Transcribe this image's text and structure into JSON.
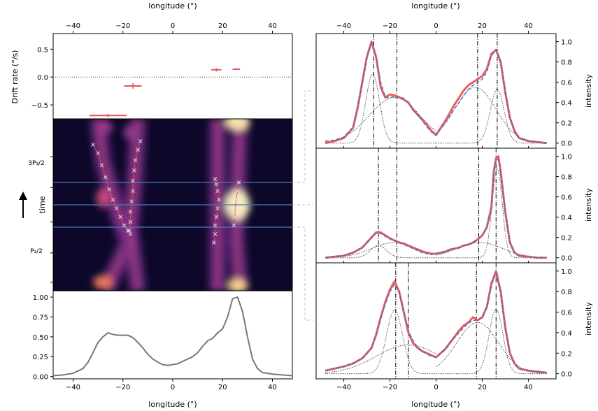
{
  "figure": {
    "top_xlabel": "longitude (°)",
    "bottom_xlabel": "longitude (°)",
    "time_label": "time",
    "p3_label_top": "3P₃/2",
    "p3_label_bottom": "P₃/2"
  },
  "chart_data": [
    {
      "id": "drift_rate",
      "type": "scatter",
      "ylabel": "Drift rate (°/s)",
      "xlim": [
        -48,
        48
      ],
      "ylim": [
        -0.75,
        0.78
      ],
      "xticks": [
        -40,
        -20,
        0,
        20,
        40
      ],
      "yticks": [
        0.5,
        0.0,
        -0.5
      ],
      "ytick_labels": [
        "0.5",
        "0.0",
        "−0.5"
      ],
      "reference_line_y": 0.0,
      "points": [
        {
          "x": -26,
          "y": -0.69,
          "xerr": 7.5,
          "yerr": 0.03
        },
        {
          "x": -16,
          "y": -0.16,
          "xerr": 3.5,
          "yerr": 0.05
        },
        {
          "x": 17.5,
          "y": 0.13,
          "xerr": 2.0,
          "yerr": 0.03
        },
        {
          "x": 25.5,
          "y": 0.14,
          "xerr": 1.5,
          "yerr": 0.0
        }
      ]
    },
    {
      "id": "time_longitude_map",
      "type": "heatmap",
      "xlim": [
        -48,
        48
      ],
      "ytick_labels": [
        "3P₃/2",
        "P₃/2"
      ],
      "marked_rows_fraction": [
        0.37,
        0.5,
        0.63
      ],
      "tracks": [
        {
          "marks": [
            [
              -32,
              0.15
            ],
            [
              -30,
              0.2
            ],
            [
              -28.5,
              0.27
            ],
            [
              -27,
              0.34
            ],
            [
              -25.5,
              0.41
            ],
            [
              -24,
              0.47
            ],
            [
              -22.5,
              0.52
            ],
            [
              -21,
              0.57
            ],
            [
              -19.5,
              0.62
            ],
            [
              -18,
              0.65
            ],
            [
              -17,
              0.67
            ]
          ]
        },
        {
          "marks": [
            [
              -13,
              0.13
            ],
            [
              -14,
              0.18
            ],
            [
              -15,
              0.24
            ],
            [
              -15.5,
              0.3
            ],
            [
              -16,
              0.36
            ],
            [
              -16,
              0.42
            ],
            [
              -16.5,
              0.48
            ],
            [
              -17,
              0.54
            ],
            [
              -17,
              0.6
            ],
            [
              -17.5,
              0.65
            ]
          ]
        },
        {
          "marks": [
            [
              17,
              0.35
            ],
            [
              17.5,
              0.38
            ],
            [
              18,
              0.42
            ],
            [
              18.5,
              0.47
            ],
            [
              18,
              0.52
            ],
            [
              17.5,
              0.57
            ],
            [
              17,
              0.62
            ],
            [
              17,
              0.67
            ],
            [
              16.5,
              0.72
            ]
          ]
        },
        {
          "marks": [
            [
              26.5,
              0.37
            ],
            [
              26,
              0.42
            ],
            [
              25.5,
              0.47
            ],
            [
              25,
              0.52
            ],
            [
              25,
              0.57
            ],
            [
              24.5,
              0.62
            ]
          ]
        }
      ]
    },
    {
      "id": "average_profile",
      "type": "line",
      "xlim": [
        -48,
        48
      ],
      "ylim": [
        -0.03,
        1.08
      ],
      "xticks": [
        -40,
        -20,
        0,
        20,
        40
      ],
      "yticks": [
        0.0,
        0.25,
        0.5,
        0.75,
        1.0
      ],
      "ytick_labels": [
        "0.00",
        "0.25",
        "0.50",
        "0.75",
        "1.00"
      ],
      "xlabel": "longitude (°)",
      "x": [
        -48,
        -44,
        -40,
        -36,
        -34,
        -32,
        -30,
        -28,
        -26,
        -24,
        -22,
        -20,
        -18,
        -16,
        -14,
        -12,
        -10,
        -8,
        -6,
        -4,
        -2,
        0,
        2,
        4,
        6,
        8,
        10,
        12,
        14,
        16,
        18,
        20,
        22,
        24,
        26,
        28,
        30,
        32,
        34,
        36,
        40,
        44,
        48
      ],
      "y": [
        0.01,
        0.02,
        0.04,
        0.1,
        0.18,
        0.3,
        0.43,
        0.5,
        0.55,
        0.53,
        0.52,
        0.52,
        0.52,
        0.49,
        0.43,
        0.36,
        0.28,
        0.22,
        0.18,
        0.15,
        0.14,
        0.15,
        0.16,
        0.19,
        0.22,
        0.25,
        0.3,
        0.38,
        0.45,
        0.48,
        0.55,
        0.6,
        0.75,
        0.98,
        1.0,
        0.82,
        0.5,
        0.22,
        0.1,
        0.05,
        0.03,
        0.02,
        0.01
      ]
    },
    {
      "id": "profile_1",
      "type": "line",
      "ylabel": "intensity",
      "xlim": [
        -52,
        52
      ],
      "ylim": [
        -0.05,
        1.08
      ],
      "yticks": [
        0.0,
        0.2,
        0.4,
        0.6,
        0.8,
        1.0
      ],
      "ytick_labels": [
        "0.0",
        "0.2",
        "0.4",
        "0.6",
        "0.8",
        "1.0"
      ],
      "xticks": [
        -40,
        -20,
        0,
        20,
        40
      ],
      "vlines": [
        -27,
        -17,
        18,
        26.5
      ],
      "data": {
        "x": [
          -48,
          -44,
          -40,
          -36,
          -34,
          -32,
          -30,
          -28,
          -26,
          -24,
          -22,
          -20,
          -18,
          -16,
          -14,
          -12,
          -10,
          -8,
          -6,
          -4,
          -2,
          0,
          2,
          4,
          6,
          8,
          10,
          12,
          14,
          16,
          18,
          20,
          22,
          24,
          26,
          28,
          30,
          32,
          34,
          36,
          40,
          44,
          48
        ],
        "y": [
          0.0,
          0.02,
          0.05,
          0.15,
          0.35,
          0.6,
          0.85,
          1.0,
          0.85,
          0.55,
          0.45,
          0.48,
          0.47,
          0.45,
          0.43,
          0.4,
          0.33,
          0.28,
          0.23,
          0.18,
          0.12,
          0.08,
          0.15,
          0.22,
          0.3,
          0.38,
          0.45,
          0.52,
          0.57,
          0.6,
          0.63,
          0.66,
          0.73,
          0.88,
          0.92,
          0.8,
          0.5,
          0.25,
          0.12,
          0.05,
          0.02,
          0.01,
          0.0
        ]
      },
      "fit": {
        "x": [
          -48,
          -44,
          -40,
          -36,
          -34,
          -32,
          -30,
          -28,
          -26,
          -24,
          -22,
          -20,
          -18,
          -16,
          -14,
          -12,
          -10,
          -8,
          -6,
          -4,
          -2,
          0,
          2,
          4,
          6,
          8,
          10,
          12,
          14,
          16,
          18,
          20,
          22,
          24,
          26,
          28,
          30,
          32,
          34,
          36,
          40,
          44,
          48
        ],
        "y": [
          0.02,
          0.03,
          0.06,
          0.16,
          0.33,
          0.6,
          0.85,
          0.98,
          0.85,
          0.6,
          0.45,
          0.45,
          0.46,
          0.46,
          0.44,
          0.4,
          0.34,
          0.28,
          0.22,
          0.16,
          0.11,
          0.08,
          0.14,
          0.2,
          0.27,
          0.34,
          0.4,
          0.47,
          0.53,
          0.57,
          0.6,
          0.63,
          0.7,
          0.86,
          0.92,
          0.8,
          0.5,
          0.25,
          0.12,
          0.05,
          0.02,
          0.01,
          0.0
        ]
      },
      "components": [
        {
          "center": -27.5,
          "amp": 0.68,
          "sigma": 3.0,
          "xrange": [
            -48,
            0
          ]
        },
        {
          "center": -18,
          "amp": 0.45,
          "sigma": 11,
          "xrange": [
            -48,
            0
          ]
        },
        {
          "center": 17,
          "amp": 0.55,
          "sigma": 9,
          "xrange": [
            0,
            48
          ]
        },
        {
          "center": 26.5,
          "amp": 0.53,
          "sigma": 3.0,
          "xrange": [
            0,
            48
          ]
        }
      ]
    },
    {
      "id": "profile_2",
      "type": "line",
      "ylabel": "intensity",
      "xlim": [
        -52,
        52
      ],
      "ylim": [
        -0.05,
        1.08
      ],
      "yticks": [
        0.0,
        0.2,
        0.4,
        0.6,
        0.8,
        1.0
      ],
      "ytick_labels": [
        "0.0",
        "0.2",
        "0.4",
        "0.6",
        "0.8",
        "1.0"
      ],
      "xticks": [
        -40,
        -20,
        0,
        20,
        40
      ],
      "vlines": [
        -25,
        -17,
        18.5,
        26
      ],
      "data": {
        "x": [
          -48,
          -44,
          -40,
          -36,
          -32,
          -30,
          -28,
          -26,
          -24,
          -22,
          -20,
          -18,
          -16,
          -14,
          -12,
          -10,
          -8,
          -6,
          -4,
          -2,
          0,
          2,
          4,
          6,
          8,
          10,
          12,
          14,
          16,
          18,
          20,
          22,
          24,
          25,
          26,
          27,
          28,
          30,
          32,
          34,
          36,
          40,
          44,
          48
        ],
        "y": [
          0.0,
          0.01,
          0.02,
          0.05,
          0.1,
          0.15,
          0.2,
          0.25,
          0.25,
          0.22,
          0.19,
          0.17,
          0.15,
          0.14,
          0.12,
          0.1,
          0.08,
          0.06,
          0.05,
          0.04,
          0.04,
          0.05,
          0.06,
          0.08,
          0.09,
          0.1,
          0.12,
          0.13,
          0.15,
          0.18,
          0.22,
          0.3,
          0.5,
          0.85,
          0.98,
          1.0,
          0.85,
          0.45,
          0.15,
          0.05,
          0.02,
          0.01,
          0.0,
          0.0
        ]
      },
      "fit": {
        "x": [
          -48,
          -44,
          -40,
          -36,
          -32,
          -30,
          -28,
          -26,
          -24,
          -22,
          -20,
          -18,
          -16,
          -14,
          -12,
          -10,
          -8,
          -6,
          -4,
          -2,
          0,
          2,
          4,
          6,
          8,
          10,
          12,
          14,
          16,
          18,
          20,
          22,
          24,
          25,
          26,
          27,
          28,
          30,
          32,
          34,
          36,
          40,
          44,
          48
        ],
        "y": [
          0.0,
          0.01,
          0.02,
          0.05,
          0.1,
          0.15,
          0.2,
          0.24,
          0.24,
          0.21,
          0.19,
          0.17,
          0.15,
          0.13,
          0.11,
          0.09,
          0.07,
          0.05,
          0.04,
          0.03,
          0.04,
          0.05,
          0.06,
          0.08,
          0.09,
          0.1,
          0.12,
          0.13,
          0.15,
          0.18,
          0.22,
          0.3,
          0.5,
          0.83,
          0.96,
          0.97,
          0.84,
          0.45,
          0.15,
          0.05,
          0.02,
          0.01,
          0.0,
          0.0
        ]
      },
      "components": [
        {
          "center": -25,
          "amp": 0.12,
          "sigma": 3.5,
          "xrange": [
            -48,
            0
          ]
        },
        {
          "center": -18,
          "amp": 0.15,
          "sigma": 10,
          "xrange": [
            -48,
            0
          ]
        },
        {
          "center": 19,
          "amp": 0.15,
          "sigma": 10,
          "xrange": [
            0,
            48
          ]
        },
        {
          "center": 26.5,
          "amp": 0.88,
          "sigma": 2.2,
          "xrange": [
            0,
            48
          ]
        }
      ]
    },
    {
      "id": "profile_3",
      "type": "line",
      "ylabel": "intensity",
      "xlim": [
        -52,
        52
      ],
      "ylim": [
        -0.05,
        1.08
      ],
      "yticks": [
        0.0,
        0.2,
        0.4,
        0.6,
        0.8,
        1.0
      ],
      "ytick_labels": [
        "0.0",
        "0.2",
        "0.4",
        "0.6",
        "0.8",
        "1.0"
      ],
      "xticks": [
        -40,
        -20,
        0,
        20,
        40
      ],
      "xtick_labels": [
        "−40",
        "−20",
        "0",
        "20",
        "40"
      ],
      "xlabel": "longitude (°)",
      "vlines": [
        -17.5,
        -12,
        17.5,
        26
      ],
      "data": {
        "x": [
          -48,
          -44,
          -40,
          -36,
          -32,
          -28,
          -26,
          -24,
          -22,
          -20,
          -18,
          -16,
          -14,
          -12,
          -10,
          -8,
          -6,
          -4,
          -2,
          0,
          2,
          4,
          6,
          8,
          10,
          12,
          14,
          16,
          18,
          20,
          22,
          24,
          26,
          28,
          30,
          32,
          34,
          36,
          40,
          44,
          48
        ],
        "y": [
          0.03,
          0.05,
          0.07,
          0.1,
          0.15,
          0.25,
          0.38,
          0.55,
          0.7,
          0.82,
          0.9,
          0.8,
          0.6,
          0.4,
          0.3,
          0.25,
          0.22,
          0.2,
          0.18,
          0.16,
          0.2,
          0.24,
          0.3,
          0.36,
          0.42,
          0.47,
          0.5,
          0.55,
          0.52,
          0.55,
          0.65,
          0.88,
          1.0,
          0.8,
          0.45,
          0.2,
          0.1,
          0.05,
          0.03,
          0.02,
          0.01
        ]
      },
      "fit": {
        "x": [
          -48,
          -44,
          -40,
          -36,
          -32,
          -28,
          -26,
          -24,
          -22,
          -20,
          -18,
          -16,
          -14,
          -12,
          -10,
          -8,
          -6,
          -4,
          -2,
          0,
          2,
          4,
          6,
          8,
          10,
          12,
          14,
          16,
          18,
          20,
          22,
          24,
          26,
          28,
          30,
          32,
          34,
          36,
          40,
          44,
          48
        ],
        "y": [
          0.03,
          0.05,
          0.07,
          0.1,
          0.15,
          0.25,
          0.37,
          0.53,
          0.68,
          0.8,
          0.87,
          0.8,
          0.6,
          0.42,
          0.32,
          0.26,
          0.22,
          0.19,
          0.17,
          0.16,
          0.2,
          0.24,
          0.3,
          0.35,
          0.4,
          0.45,
          0.49,
          0.52,
          0.52,
          0.55,
          0.64,
          0.86,
          0.98,
          0.8,
          0.45,
          0.2,
          0.1,
          0.05,
          0.03,
          0.02,
          0.01
        ]
      },
      "components": [
        {
          "center": -18,
          "amp": 0.62,
          "sigma": 3.5,
          "xrange": [
            -48,
            0
          ]
        },
        {
          "center": -12,
          "amp": 0.28,
          "sigma": 14,
          "xrange": [
            -48,
            0
          ]
        },
        {
          "center": 18,
          "amp": 0.5,
          "sigma": 9,
          "xrange": [
            0,
            48
          ]
        },
        {
          "center": 26,
          "amp": 0.63,
          "sigma": 3.0,
          "xrange": [
            0,
            48
          ]
        }
      ]
    }
  ]
}
